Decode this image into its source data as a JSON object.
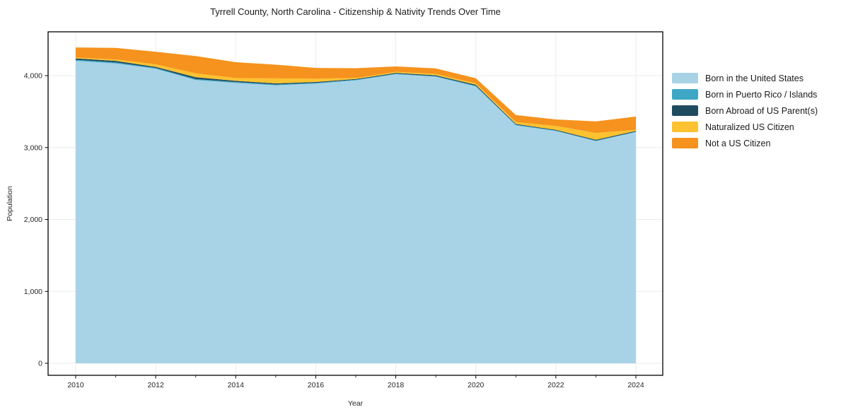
{
  "chart_data": {
    "type": "area",
    "stacked": true,
    "title": "Tyrrell County, North Carolina - Citizenship & Nativity Trends Over Time",
    "xlabel": "Year",
    "ylabel": "Population",
    "x": [
      2010,
      2011,
      2012,
      2013,
      2014,
      2015,
      2016,
      2017,
      2018,
      2019,
      2020,
      2021,
      2022,
      2023,
      2024
    ],
    "series": [
      {
        "name": "Born in the United States",
        "color": "#a8d3e7",
        "values": [
          4205,
          4170,
          4095,
          3940,
          3900,
          3865,
          3890,
          3935,
          4020,
          3985,
          3850,
          3310,
          3230,
          3090,
          3215
        ]
      },
      {
        "name": "Born in Puerto Rico / Islands",
        "color": "#3fa7c6",
        "values": [
          15,
          15,
          12,
          12,
          12,
          12,
          10,
          8,
          8,
          8,
          8,
          8,
          6,
          6,
          6
        ]
      },
      {
        "name": "Born Abroad of US Parent(s)",
        "color": "#1f4b5f",
        "values": [
          20,
          20,
          15,
          25,
          15,
          15,
          12,
          10,
          10,
          12,
          15,
          10,
          10,
          12,
          10
        ]
      },
      {
        "name": "Naturalized US Citizen",
        "color": "#fcc22f",
        "values": [
          12,
          20,
          35,
          55,
          40,
          70,
          45,
          15,
          15,
          20,
          20,
          25,
          55,
          95,
          15
        ]
      },
      {
        "name": "Not a US Citizen",
        "color": "#f6921e",
        "values": [
          140,
          160,
          175,
          240,
          220,
          190,
          150,
          135,
          75,
          75,
          70,
          100,
          90,
          160,
          185
        ]
      }
    ],
    "xticks_major": [
      2010,
      2012,
      2014,
      2016,
      2018,
      2020,
      2022,
      2024
    ],
    "xticks_minor": [
      2011,
      2013,
      2015,
      2017,
      2019,
      2021,
      2023
    ],
    "yticks": [
      0,
      1000,
      2000,
      3000,
      4000
    ],
    "xlim": [
      2009.3,
      2024.7
    ],
    "ylim": [
      0,
      4640
    ],
    "grid": true,
    "grid_color": "#ebebeb",
    "frame_color": "#000000",
    "text_color": "#262626",
    "legend_position": "right"
  }
}
